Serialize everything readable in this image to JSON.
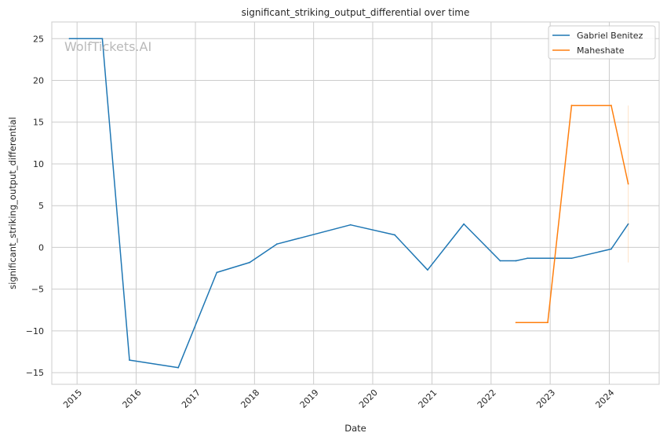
{
  "chart_data": {
    "type": "line",
    "title": "significant_striking_output_differential over time",
    "xlabel": "Date",
    "ylabel": "significant_striking_output_differential",
    "watermark": "WolfTickets.AI",
    "xlim": [
      "2014-07-29",
      "2024-11-04"
    ],
    "ylim": [
      -16.4,
      27.0
    ],
    "x_ticks": [
      "2015",
      "2016",
      "2017",
      "2018",
      "2019",
      "2020",
      "2021",
      "2022",
      "2023",
      "2024"
    ],
    "x_tick_dates": [
      "2015-01-01",
      "2016-01-01",
      "2017-01-01",
      "2018-01-01",
      "2019-01-01",
      "2020-01-01",
      "2021-01-01",
      "2022-01-01",
      "2023-01-01",
      "2024-01-01"
    ],
    "y_ticks": [
      -15,
      -10,
      -5,
      0,
      5,
      10,
      15,
      20,
      25
    ],
    "grid": true,
    "legend_position": "top-right",
    "series": [
      {
        "name": "Gabriel Benitez",
        "color": "#1f77b4",
        "points": [
          {
            "x": "2014-11-15",
            "y": 25.0
          },
          {
            "x": "2015-06-06",
            "y": 25.0
          },
          {
            "x": "2015-11-21",
            "y": -13.5
          },
          {
            "x": "2016-09-17",
            "y": -14.4
          },
          {
            "x": "2017-05-13",
            "y": -3.0
          },
          {
            "x": "2017-12-02",
            "y": -1.8
          },
          {
            "x": "2018-05-19",
            "y": 0.4
          },
          {
            "x": "2019-08-17",
            "y": 2.7
          },
          {
            "x": "2020-05-16",
            "y": 1.5
          },
          {
            "x": "2020-12-05",
            "y": -2.7
          },
          {
            "x": "2021-07-17",
            "y": 2.8
          },
          {
            "x": "2022-02-26",
            "y": -1.6
          },
          {
            "x": "2022-06-04",
            "y": -1.6
          },
          {
            "x": "2022-08-13",
            "y": -1.3
          },
          {
            "x": "2023-05-13",
            "y": -1.3
          },
          {
            "x": "2024-01-13",
            "y": -0.2
          },
          {
            "x": "2024-04-27",
            "y": 2.8
          }
        ]
      },
      {
        "name": "Maheshate",
        "color": "#ff7f0e",
        "points": [
          {
            "x": "2022-06-04",
            "y": -9.0
          },
          {
            "x": "2022-12-17",
            "y": -9.0
          },
          {
            "x": "2023-05-13",
            "y": 17.0
          },
          {
            "x": "2024-01-13",
            "y": 17.0
          },
          {
            "x": "2024-04-27",
            "y": 7.6
          }
        ],
        "band": {
          "x": "2024-04-27",
          "low": -1.8,
          "high": 17.0
        }
      }
    ]
  }
}
